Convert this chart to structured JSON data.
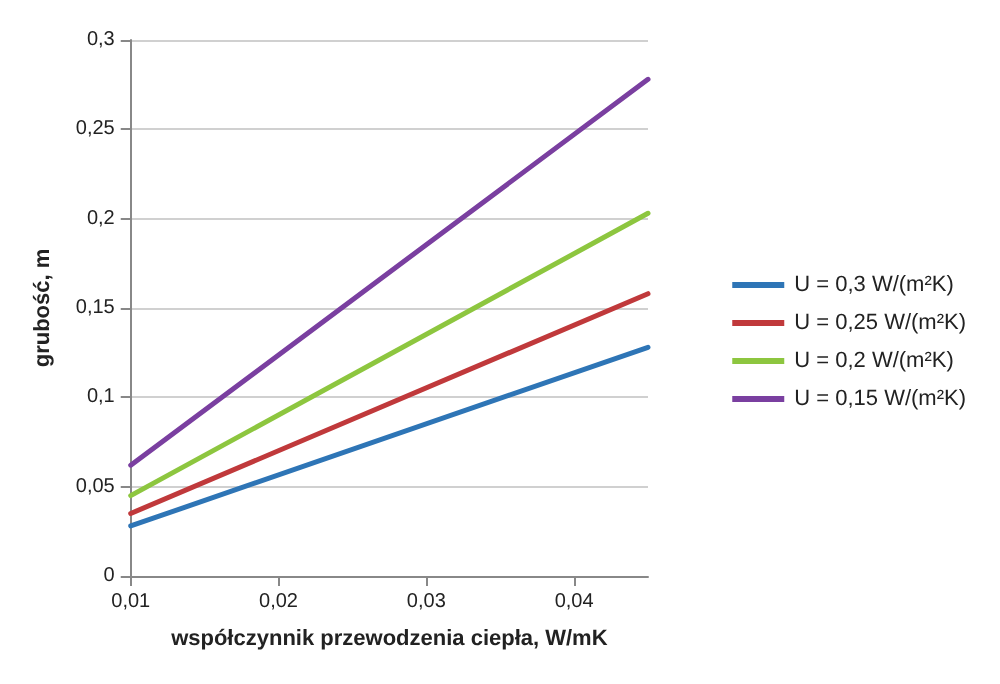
{
  "chart_data": {
    "type": "line",
    "xlabel": "współczynnik przewodzenia ciepła, W/mK",
    "ylabel": "grubość, m",
    "x": [
      0.01,
      0.045
    ],
    "series": [
      {
        "name": "U = 0,3 W/(m²K)",
        "color": "#2e75b6",
        "values": [
          0.028,
          0.128
        ]
      },
      {
        "name": "U = 0,25 W/(m²K)",
        "color": "#c0393b",
        "values": [
          0.035,
          0.158
        ]
      },
      {
        "name": "U = 0,2 W/(m²K)",
        "color": "#8dc63f",
        "values": [
          0.045,
          0.203
        ]
      },
      {
        "name": "U = 0,15 W/(m²K)",
        "color": "#7a3fa0",
        "values": [
          0.062,
          0.278
        ]
      }
    ],
    "xlim": [
      0.01,
      0.045
    ],
    "xticks": [
      {
        "value": 0.01,
        "label": "0,01"
      },
      {
        "value": 0.02,
        "label": "0,02"
      },
      {
        "value": 0.03,
        "label": "0,03"
      },
      {
        "value": 0.04,
        "label": "0,04"
      }
    ],
    "ylim": [
      0,
      0.3
    ],
    "yticks": [
      0,
      {
        "value": 0.05,
        "label": "0,05"
      },
      {
        "value": 0.1,
        "label": "0,1"
      },
      {
        "value": 0.15,
        "label": "0,15"
      },
      {
        "value": 0.2,
        "label": "0,2"
      },
      {
        "value": 0.25,
        "label": "0,25"
      },
      {
        "value": 0.3,
        "label": "0,3"
      }
    ],
    "grid": "y",
    "legend": "right",
    "marker": "none",
    "line_style": "solid"
  }
}
